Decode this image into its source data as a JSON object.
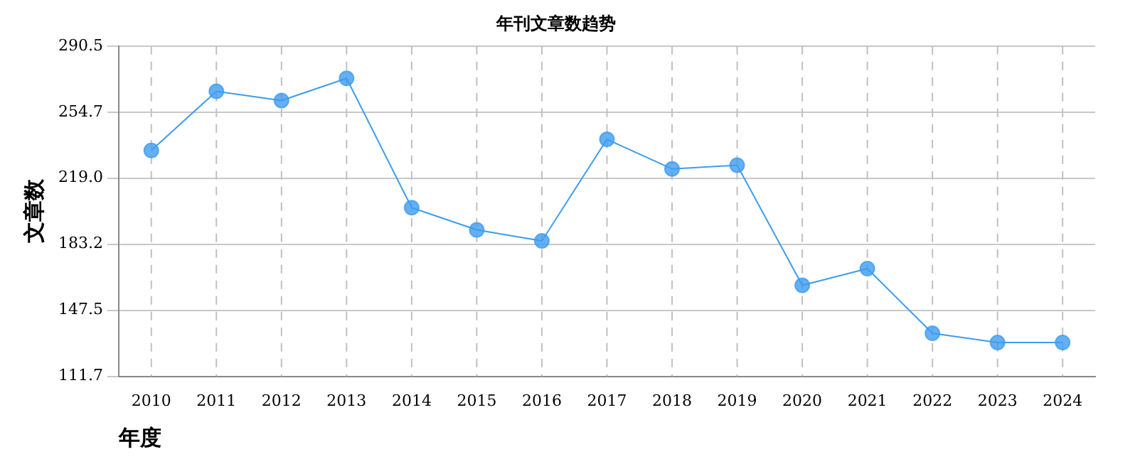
{
  "chart_data": {
    "type": "line",
    "title": "年刊文章数趋势",
    "xlabel": "年度",
    "ylabel": "文章数",
    "categories": [
      "2010",
      "2011",
      "2012",
      "2013",
      "2014",
      "2015",
      "2016",
      "2017",
      "2018",
      "2019",
      "2020",
      "2021",
      "2022",
      "2023",
      "2024"
    ],
    "series": [
      {
        "color": "#3d9cf0",
        "values": [
          234,
          266,
          261,
          273,
          203,
          191,
          185,
          240,
          224,
          226,
          161,
          170,
          135,
          130,
          130
        ]
      }
    ],
    "ylim": [
      111.7,
      290.5
    ],
    "yticks": [
      {
        "value": 111.7,
        "label": "111.7"
      },
      {
        "value": 147.5,
        "label": "147.5"
      },
      {
        "value": 183.2,
        "label": "183.2"
      },
      {
        "value": 219.0,
        "label": "219.0"
      },
      {
        "value": 254.7,
        "label": "254.7"
      },
      {
        "value": 290.5,
        "label": "290.5"
      }
    ],
    "grid": true,
    "legend": false,
    "marker": "circle",
    "line_style": "solid"
  }
}
